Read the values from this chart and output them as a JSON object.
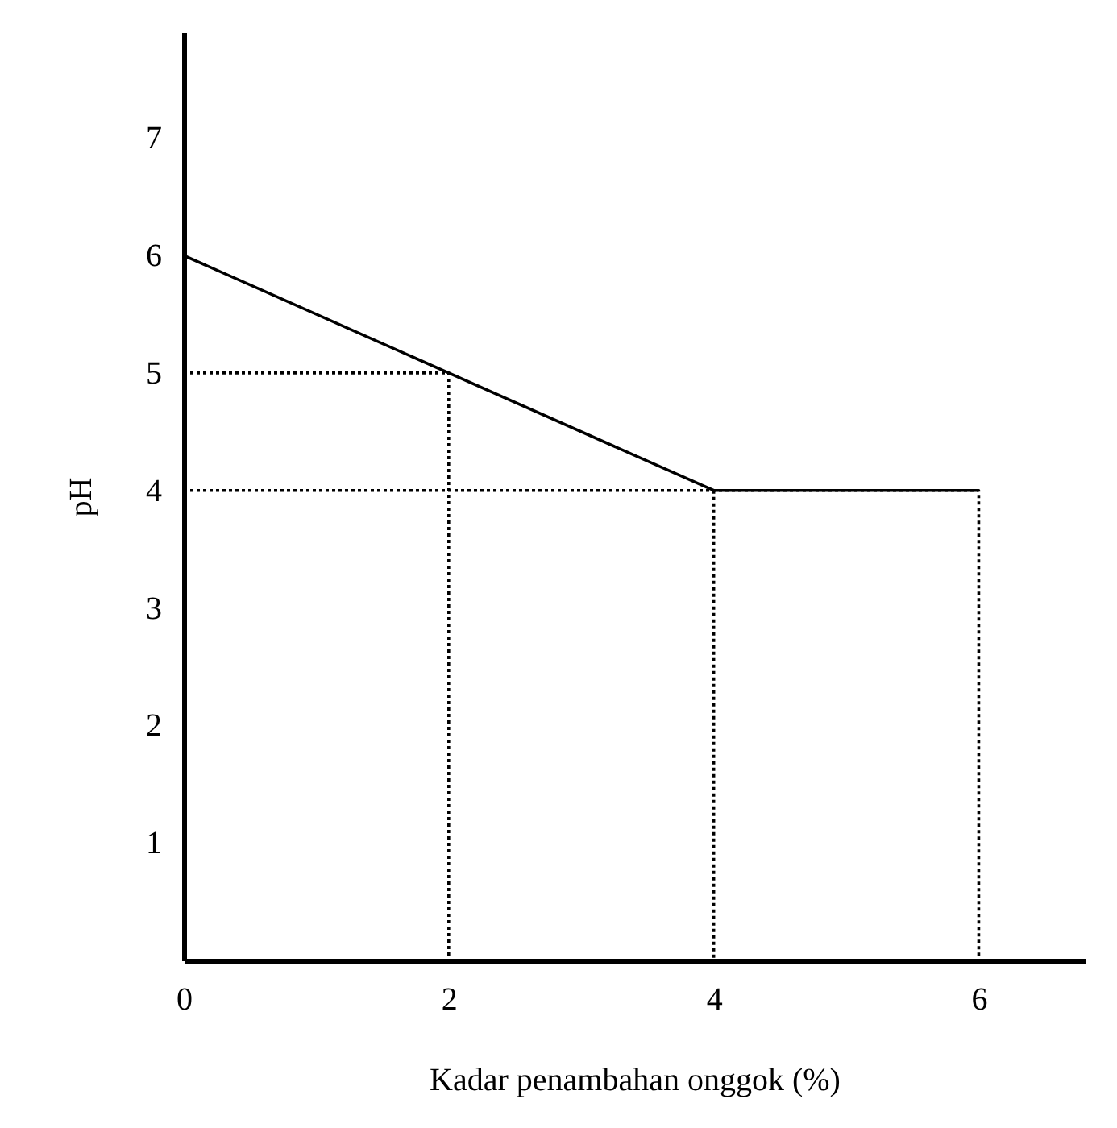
{
  "chart_data": {
    "type": "line",
    "xlabel": "Kadar penambahan onggok (%)",
    "ylabel": "pH",
    "series": [
      {
        "color": "#000000",
        "values": [
          6,
          5,
          4,
          4
        ],
        "x": [
          0,
          2,
          4,
          6
        ],
        "line_style": "solid"
      },
      {
        "color": "#000000",
        "values": [
          5,
          5,
          0
        ],
        "x": [
          0,
          2,
          2
        ],
        "line_style": "dotted"
      },
      {
        "color": "#000000",
        "values": [
          4,
          4,
          0
        ],
        "x": [
          0,
          6,
          6
        ],
        "line_style": "dotted"
      },
      {
        "color": "#000000",
        "values": [
          4,
          0
        ],
        "x": [
          4,
          4
        ],
        "line_style": "dotted"
      }
    ],
    "xlim": [
      0,
      6.8
    ],
    "ylim": [
      0,
      7.9
    ],
    "xticks": [
      0,
      2,
      4,
      6
    ],
    "yticks": [
      1,
      2,
      3,
      4,
      5,
      6,
      7
    ],
    "grid": false,
    "marker": "none"
  }
}
